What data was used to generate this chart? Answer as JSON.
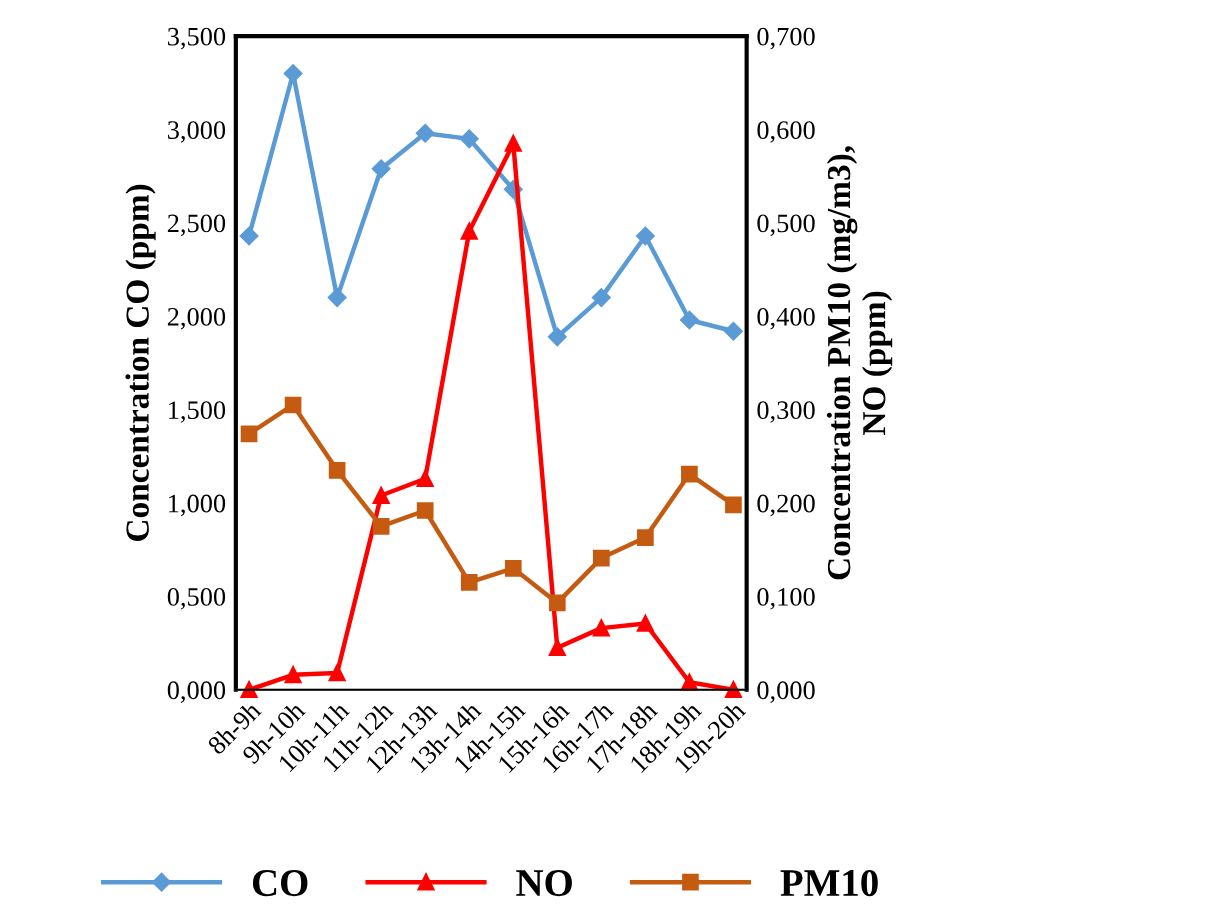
{
  "chart_data": {
    "type": "line",
    "ylabel": "Concentration CO (ppm)",
    "y2label": "Concentration PM10 (mg/m3),\nNO (ppm)",
    "categories": [
      "8h-9h",
      "9h-10h",
      "10h-11h",
      "11h-12h",
      "12h-13h",
      "13h-14h",
      "14h-15h",
      "15h-16h",
      "16h-17h",
      "17h-18h",
      "18h-19h",
      "19h-20h"
    ],
    "series": [
      {
        "name": "CO",
        "color": "#5b9bd5",
        "marker": "diamond",
        "values": [
          2.43,
          3.3,
          2.1,
          2.79,
          2.98,
          2.95,
          2.68,
          1.89,
          2.1,
          2.43,
          1.98,
          1.92
        ]
      },
      {
        "name": "NO",
        "color": "#ff0000",
        "marker": "triangle",
        "axis": "y2",
        "values": [
          0.0,
          0.016,
          0.018,
          0.208,
          0.226,
          0.491,
          0.585,
          0.045,
          0.066,
          0.071,
          0.008,
          0.0
        ]
      },
      {
        "name": "PM10",
        "color": "#c55a11",
        "marker": "square",
        "axis": "y2",
        "values": [
          0.274,
          0.305,
          0.235,
          0.175,
          0.192,
          0.115,
          0.13,
          0.093,
          0.141,
          0.163,
          0.231,
          0.198
        ]
      }
    ],
    "ylim": [
      0,
      3.5
    ],
    "yticks": [
      {
        "value": 0,
        "label": "0,000"
      },
      {
        "value": 0.5,
        "label": "0,500"
      },
      {
        "value": 1.0,
        "label": "1,000"
      },
      {
        "value": 1.5,
        "label": "1,500"
      },
      {
        "value": 2.0,
        "label": "2,000"
      },
      {
        "value": 2.5,
        "label": "2,500"
      },
      {
        "value": 3.0,
        "label": "3,000"
      },
      {
        "value": 3.5,
        "label": "3,500"
      }
    ],
    "y2lim": [
      0,
      0.7
    ],
    "y2ticks": [
      {
        "value": 0,
        "label": "0,000"
      },
      {
        "value": 0.1,
        "label": "0,100"
      },
      {
        "value": 0.2,
        "label": "0,200"
      },
      {
        "value": 0.3,
        "label": "0,300"
      },
      {
        "value": 0.4,
        "label": "0,400"
      },
      {
        "value": 0.5,
        "label": "0,500"
      },
      {
        "value": 0.6,
        "label": "0,600"
      },
      {
        "value": 0.7,
        "label": "0,700"
      }
    ],
    "grid": false,
    "legend": "bottom",
    "line_style": "solid"
  }
}
